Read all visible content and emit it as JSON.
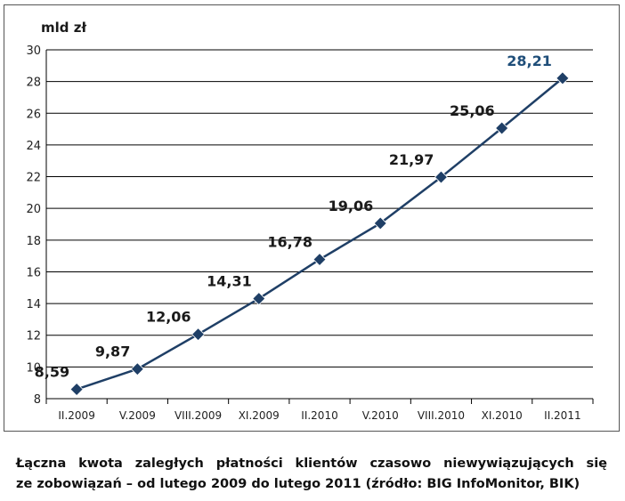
{
  "chart_data": {
    "type": "line",
    "unit_label": "mld zł",
    "categories": [
      "II.2009",
      "V.2009",
      "VIII.2009",
      "XI.2009",
      "II.2010",
      "V.2010",
      "VIII.2010",
      "XI.2010",
      "II.2011"
    ],
    "values": [
      8.59,
      9.87,
      12.06,
      14.31,
      16.78,
      19.06,
      21.97,
      25.06,
      28.21
    ],
    "value_labels": [
      "8,59",
      "9,87",
      "12,06",
      "14,31",
      "16,78",
      "19,06",
      "21,97",
      "25,06",
      "28,21"
    ],
    "ylim": [
      8,
      30
    ],
    "yticks": [
      8,
      10,
      12,
      14,
      16,
      18,
      20,
      22,
      24,
      26,
      28,
      30
    ],
    "grid": true,
    "colors": {
      "line": "#1f3f66",
      "marker": "#1f3f66",
      "last_label": "#1f4e79",
      "grid": "#000000"
    }
  },
  "caption": {
    "line1": "Łączna kwota zaległych płatności klientów czasowo niewywiązujących się",
    "line2": "ze zobowiązań – od lutego 2009 do lutego 2011 (źródło: BIG InfoMonitor, BIK)"
  }
}
